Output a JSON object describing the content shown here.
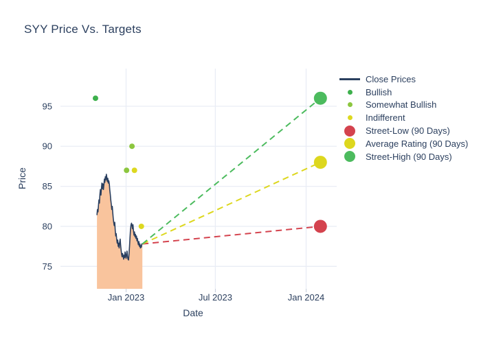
{
  "chart_data": {
    "type": "line+scatter",
    "title": "SYY Price Vs. Targets",
    "xlabel": "Date",
    "ylabel": "Price",
    "grid": true,
    "legend_position": "outside-right-top",
    "x_axis": {
      "unit": "days from 2023-01-01",
      "range": [
        -133,
        427
      ],
      "ticks": [
        {
          "label": "Jan 2023",
          "value": 0
        },
        {
          "label": "Jul 2023",
          "value": 181
        },
        {
          "label": "Jan 2024",
          "value": 365
        }
      ]
    },
    "y_axis": {
      "range": [
        72.2,
        99.7
      ],
      "ticks": [
        75,
        80,
        85,
        90,
        95
      ]
    },
    "colors": {
      "close_line": "#2a3f5f",
      "close_fill": "#f9c49d",
      "bullish": "#3db04c",
      "somewhat_bullish": "#8cc63f",
      "indifferent": "#ddd820",
      "street_low": "#d4434e",
      "average_rating": "#ddd71e",
      "street_high": "#4cbb5e",
      "grid": "#e9edf5",
      "tick": "#c6cedb",
      "text": "#2b3f5e"
    },
    "series": {
      "close_prices": {
        "name": "Close Prices",
        "points": [
          [
            -59,
            81.4
          ],
          [
            -58,
            82.1
          ],
          [
            -57,
            81.8
          ],
          [
            -56,
            82.6
          ],
          [
            -55,
            83.3
          ],
          [
            -54,
            82.9
          ],
          [
            -53,
            84.0
          ],
          [
            -52,
            84.6
          ],
          [
            -51,
            83.9
          ],
          [
            -50,
            84.7
          ],
          [
            -49,
            85.4
          ],
          [
            -48,
            84.7
          ],
          [
            -47,
            85.3
          ],
          [
            -46,
            84.6
          ],
          [
            -45,
            85.2
          ],
          [
            -44,
            85.9
          ],
          [
            -43,
            85.5
          ],
          [
            -42,
            86.2
          ],
          [
            -41,
            85.8
          ],
          [
            -40,
            86.5
          ],
          [
            -39,
            86.1
          ],
          [
            -38,
            85.6
          ],
          [
            -37,
            86.0
          ],
          [
            -36,
            85.4
          ],
          [
            -35,
            85.7
          ],
          [
            -34,
            85.3
          ],
          [
            -33,
            84.5
          ],
          [
            -32,
            84.0
          ],
          [
            -31,
            83.3
          ],
          [
            -30,
            82.8
          ],
          [
            -29,
            82.1
          ],
          [
            -28,
            82.5
          ],
          [
            -27,
            81.7
          ],
          [
            -26,
            81.0
          ],
          [
            -25,
            80.5
          ],
          [
            -24,
            80.1
          ],
          [
            -23,
            80.5
          ],
          [
            -22,
            79.5
          ],
          [
            -21,
            78.8
          ],
          [
            -20,
            79.1
          ],
          [
            -19,
            78.4
          ],
          [
            -18,
            77.9
          ],
          [
            -17,
            78.3
          ],
          [
            -16,
            77.5
          ],
          [
            -15,
            77.9
          ],
          [
            -14,
            77.3
          ],
          [
            -13,
            78.0
          ],
          [
            -12,
            78.4
          ],
          [
            -11,
            77.6
          ],
          [
            -10,
            77.0
          ],
          [
            -9,
            76.5
          ],
          [
            -8,
            76.2
          ],
          [
            -7,
            76.6
          ],
          [
            -6,
            76.3
          ],
          [
            -5,
            75.9
          ],
          [
            -4,
            76.4
          ],
          [
            -3,
            76.1
          ],
          [
            -2,
            76.8
          ],
          [
            -1,
            76.3
          ],
          [
            0,
            76.0
          ],
          [
            1,
            76.5
          ],
          [
            2,
            76.9
          ],
          [
            3,
            76.2
          ],
          [
            4,
            75.9
          ],
          [
            5,
            75.8
          ],
          [
            6,
            76.6
          ],
          [
            7,
            77.5
          ],
          [
            8,
            78.6
          ],
          [
            9,
            79.6
          ],
          [
            10,
            80.2
          ],
          [
            11,
            80.4
          ],
          [
            12,
            80.1
          ],
          [
            13,
            79.7
          ],
          [
            14,
            80.2
          ],
          [
            15,
            79.5
          ],
          [
            16,
            78.9
          ],
          [
            17,
            79.3
          ],
          [
            18,
            78.7
          ],
          [
            19,
            79.0
          ],
          [
            20,
            78.5
          ],
          [
            21,
            78.8
          ],
          [
            22,
            78.2
          ],
          [
            23,
            78.5
          ],
          [
            24,
            78.0
          ],
          [
            25,
            77.7
          ],
          [
            26,
            78.1
          ],
          [
            27,
            77.5
          ],
          [
            28,
            77.8
          ],
          [
            29,
            77.3
          ],
          [
            30,
            77.6
          ],
          [
            31,
            77.4
          ],
          [
            32,
            77.8
          ],
          [
            33,
            77.8
          ]
        ]
      },
      "ratings": [
        {
          "type": "bullish",
          "label": "Bullish",
          "day": -62,
          "price": 96
        },
        {
          "type": "somewhat_bullish",
          "label": "Somewhat Bullish",
          "day": 1,
          "price": 87
        },
        {
          "type": "somewhat_bullish",
          "label": "Somewhat Bullish",
          "day": 12,
          "price": 90
        },
        {
          "type": "indifferent",
          "label": "Indifferent",
          "day": 17,
          "price": 87
        },
        {
          "type": "indifferent",
          "label": "Indifferent",
          "day": 31,
          "price": 80
        }
      ],
      "projection_origin": {
        "day": 33,
        "price": 77.8
      },
      "targets": [
        {
          "key": "street_low",
          "name": "Street-Low (90 Days)",
          "day": 394,
          "price": 80
        },
        {
          "key": "average_rating",
          "name": "Average Rating (90 Days)",
          "day": 394,
          "price": 88
        },
        {
          "key": "street_high",
          "name": "Street-High (90 Days)",
          "day": 394,
          "price": 96
        }
      ]
    },
    "legend": {
      "items": [
        {
          "label": "Close Prices",
          "swatch": "line",
          "color_key": "close_line"
        },
        {
          "label": "Bullish",
          "swatch": "dot-small",
          "color_key": "bullish"
        },
        {
          "label": "Somewhat Bullish",
          "swatch": "dot-small",
          "color_key": "somewhat_bullish"
        },
        {
          "label": "Indifferent",
          "swatch": "dot-small",
          "color_key": "indifferent"
        },
        {
          "label": "Street-Low (90 Days)",
          "swatch": "dot-large",
          "color_key": "street_low"
        },
        {
          "label": "Average Rating (90 Days)",
          "swatch": "dot-large",
          "color_key": "average_rating"
        },
        {
          "label": "Street-High (90 Days)",
          "swatch": "dot-large",
          "color_key": "street_high"
        }
      ]
    }
  }
}
